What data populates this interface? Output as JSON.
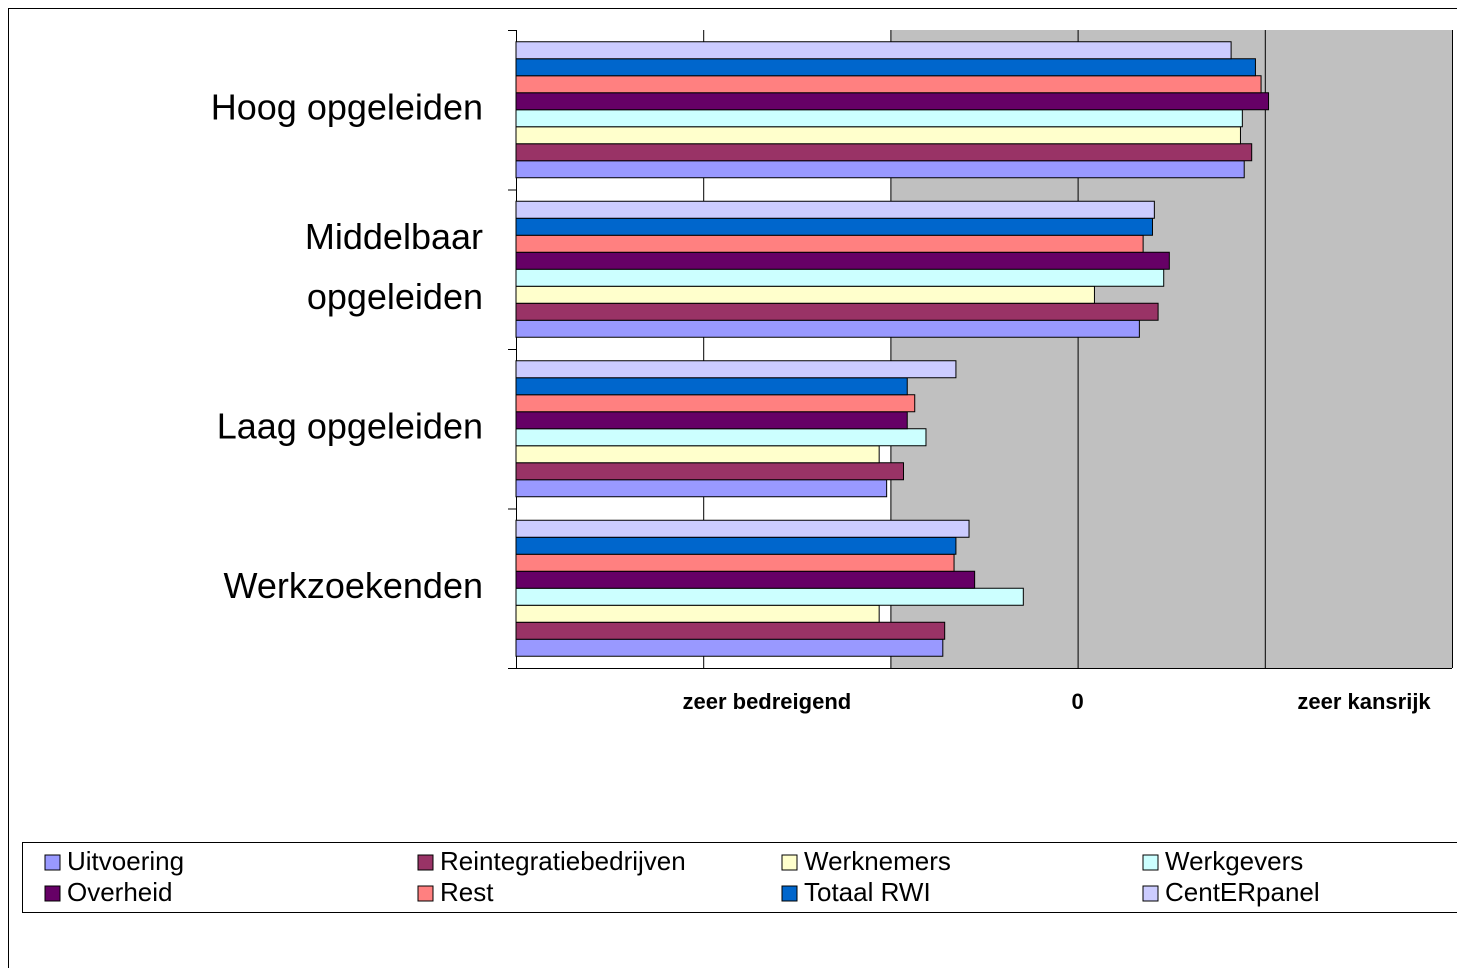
{
  "chart_data": {
    "type": "hbar",
    "categories": [
      "Hoog opgeleiden",
      [
        "Middelbaar",
        "opgeleiden"
      ],
      "Laag opgeleiden",
      "Werkzoekenden"
    ],
    "series": [
      {
        "name": "Uitvoering",
        "color": "#9999ff",
        "values": [
          0.89,
          0.33,
          -1.02,
          -0.72
        ]
      },
      {
        "name": "Reintegratiebedrijven",
        "color": "#993366",
        "values": [
          0.93,
          0.43,
          -0.93,
          -0.71
        ]
      },
      {
        "name": "Werknemers",
        "color": "#ffffcc",
        "values": [
          0.87,
          0.09,
          -1.06,
          -1.06
        ]
      },
      {
        "name": "Werkgevers",
        "color": "#ccffff",
        "values": [
          0.88,
          0.46,
          -0.81,
          -0.29
        ]
      },
      {
        "name": "Overheid",
        "color": "#660066",
        "values": [
          1.02,
          0.49,
          -0.91,
          -0.55
        ]
      },
      {
        "name": "Rest",
        "color": "#ff8080",
        "values": [
          0.98,
          0.35,
          -0.87,
          -0.66
        ]
      },
      {
        "name": "Totaal RWI",
        "color": "#0066cc",
        "values": [
          0.95,
          0.4,
          -0.91,
          -0.65
        ]
      },
      {
        "name": "CentERpanel",
        "color": "#ccccff",
        "values": [
          0.82,
          0.41,
          -0.65,
          -0.58
        ]
      }
    ],
    "xlim": [
      -3,
      2
    ],
    "xgrid": [
      -3,
      -2,
      -1,
      0,
      1,
      2
    ],
    "xticks": [
      {
        "value": -1.66,
        "label": "zeer bedreigend"
      },
      0,
      {
        "value": 1.53,
        "label": "zeer kansrijk"
      }
    ],
    "plot_background_from": -1,
    "legend": "bottom"
  }
}
